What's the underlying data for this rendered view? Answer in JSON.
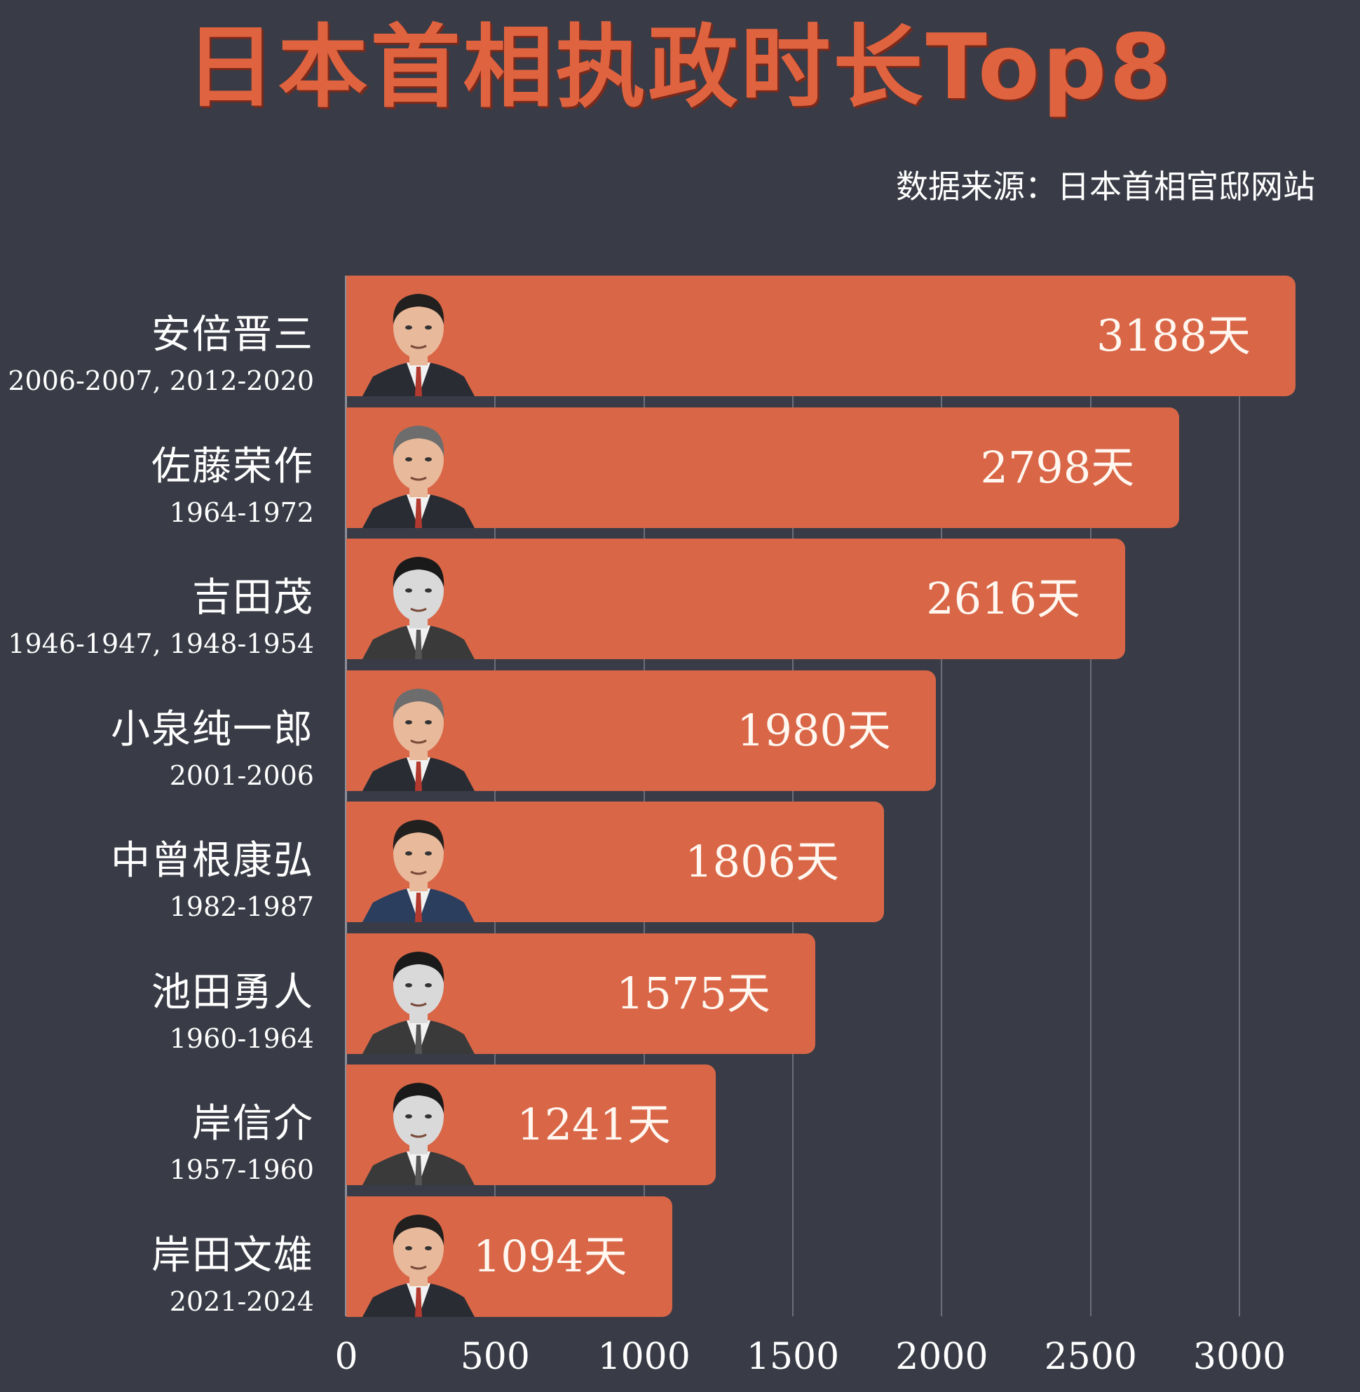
{
  "header": {
    "title": "日本首相执政时长Top8",
    "source": "数据来源：日本首相官邸网站"
  },
  "colors": {
    "background": "#393b46",
    "bar": "#d96647",
    "title": "#e06340",
    "text": "#ffffff",
    "grid": "#6b6e7b"
  },
  "chart_data": {
    "type": "bar",
    "orientation": "horizontal",
    "title": "日本首相执政时长Top8",
    "subtitle": "数据来源：日本首相官邸网站",
    "xlabel": "",
    "ylabel": "",
    "unit": "天",
    "xlim": [
      0,
      3200
    ],
    "xticks": [
      0,
      500,
      1000,
      1500,
      2000,
      2500,
      3000
    ],
    "grid": true,
    "legend": null,
    "categories": [
      "安倍晋三",
      "佐藤荣作",
      "吉田茂",
      "小泉纯一郎",
      "中曾根康弘",
      "池田勇人",
      "岸信介",
      "岸田文雄"
    ],
    "values": [
      3188,
      2798,
      2616,
      1980,
      1806,
      1575,
      1241,
      1094
    ]
  },
  "bars": [
    {
      "name": "安倍晋三",
      "years": "2006-2007, 2012-2020",
      "value": 3188,
      "value_label": "3188天",
      "portrait": "abe-shinzo-portrait"
    },
    {
      "name": "佐藤荣作",
      "years": "1964-1972",
      "value": 2798,
      "value_label": "2798天",
      "portrait": "sato-eisaku-portrait"
    },
    {
      "name": "吉田茂",
      "years": "1946-1947, 1948-1954",
      "value": 2616,
      "value_label": "2616天",
      "portrait": "yoshida-shigeru-portrait"
    },
    {
      "name": "小泉纯一郎",
      "years": "2001-2006",
      "value": 1980,
      "value_label": "1980天",
      "portrait": "koizumi-junichiro-portrait"
    },
    {
      "name": "中曾根康弘",
      "years": "1982-1987",
      "value": 1806,
      "value_label": "1806天",
      "portrait": "nakasone-yasuhiro-portrait"
    },
    {
      "name": "池田勇人",
      "years": "1960-1964",
      "value": 1575,
      "value_label": "1575天",
      "portrait": "ikeda-hayato-portrait"
    },
    {
      "name": "岸信介",
      "years": "1957-1960",
      "value": 1241,
      "value_label": "1241天",
      "portrait": "kishi-nobusuke-portrait"
    },
    {
      "name": "岸田文雄",
      "years": "2021-2024",
      "value": 1094,
      "value_label": "1094天",
      "portrait": "kishida-fumio-portrait"
    }
  ],
  "axis": {
    "ticks": [
      "0",
      "500",
      "1000",
      "1500",
      "2000",
      "2500",
      "3000"
    ]
  }
}
